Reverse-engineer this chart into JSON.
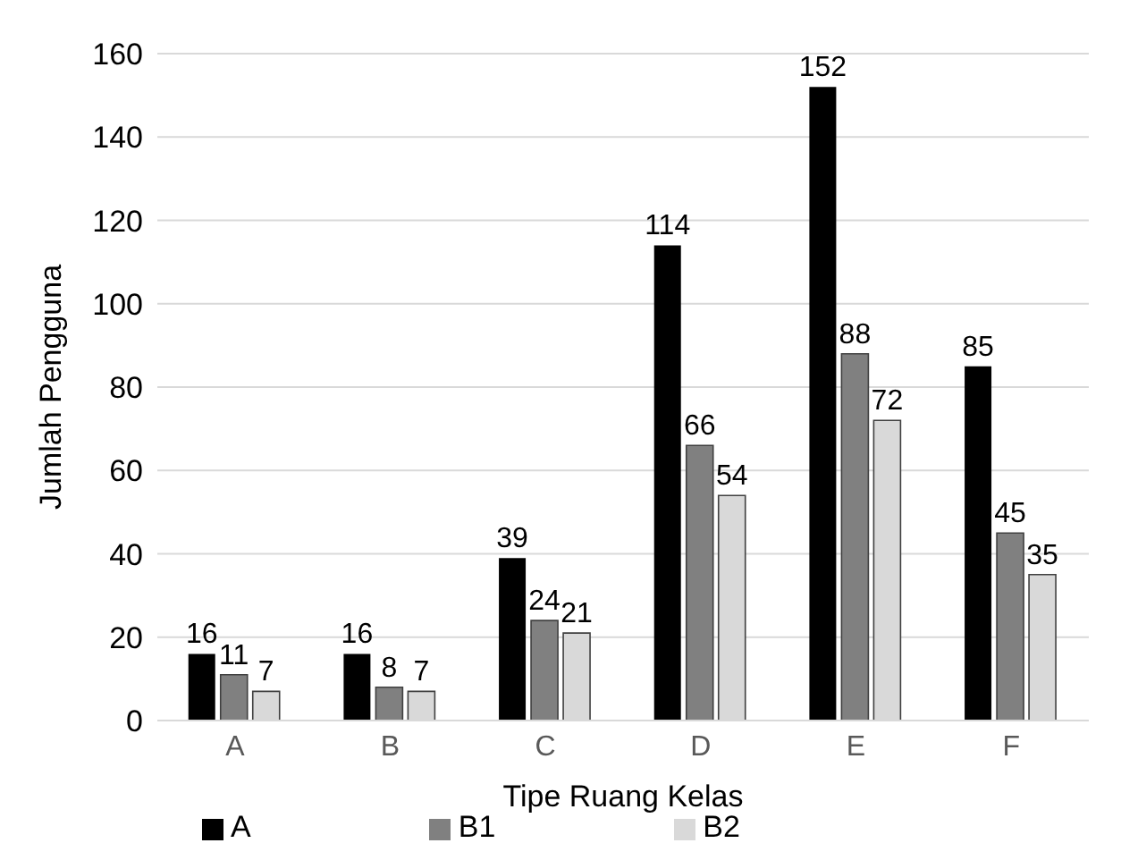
{
  "chart_data": {
    "type": "bar",
    "xlabel": "Tipe Ruang Kelas",
    "ylabel": "Jumlah Pengguna",
    "categories": [
      "A",
      "B",
      "C",
      "D",
      "E",
      "F"
    ],
    "series": [
      {
        "name": "A",
        "color": "#000000",
        "values": [
          16,
          16,
          39,
          114,
          152,
          85
        ]
      },
      {
        "name": "B1",
        "color": "#808080",
        "values": [
          11,
          8,
          24,
          66,
          88,
          45
        ]
      },
      {
        "name": "B2",
        "color": "#d9d9d9",
        "values": [
          7,
          7,
          21,
          54,
          72,
          35
        ]
      }
    ],
    "ylim": [
      0,
      160
    ],
    "yticks": [
      0,
      20,
      40,
      60,
      80,
      100,
      120,
      140,
      160
    ],
    "grid": "y",
    "legend": "bottom",
    "data_labels": true
  }
}
